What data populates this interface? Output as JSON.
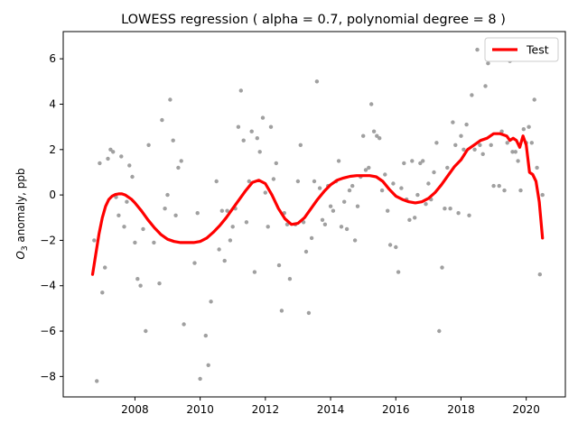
{
  "chart_data": {
    "type": "scatter",
    "title": "LOWESS regression ( alpha = 0.7, polynomial degree = 8 )",
    "xlabel": "",
    "ylabel_prefix": "O",
    "ylabel_sub": "3",
    "ylabel_suffix": " anomaly, ppb",
    "xlim": [
      2005.8,
      2021.2
    ],
    "ylim": [
      -8.9,
      7.2
    ],
    "xticks": [
      2008,
      2010,
      2012,
      2014,
      2016,
      2018,
      2020
    ],
    "yticks": [
      -8,
      -6,
      -4,
      -2,
      0,
      2,
      4,
      6
    ],
    "grid": false,
    "legend": {
      "position": "top-right",
      "entries": [
        "Test"
      ]
    },
    "colors": {
      "fit": "#ff0000",
      "points": "#a0a0a0"
    },
    "points": [
      {
        "x": 2006.75,
        "y": -2.0
      },
      {
        "x": 2006.83,
        "y": -8.2
      },
      {
        "x": 2006.92,
        "y": 1.4
      },
      {
        "x": 2007.0,
        "y": -4.3
      },
      {
        "x": 2007.08,
        "y": -3.2
      },
      {
        "x": 2007.17,
        "y": 1.6
      },
      {
        "x": 2007.25,
        "y": 2.0
      },
      {
        "x": 2007.33,
        "y": 1.9
      },
      {
        "x": 2007.42,
        "y": -0.1
      },
      {
        "x": 2007.5,
        "y": -0.9
      },
      {
        "x": 2007.58,
        "y": 1.7
      },
      {
        "x": 2007.67,
        "y": -1.4
      },
      {
        "x": 2007.75,
        "y": -0.3
      },
      {
        "x": 2007.83,
        "y": 1.3
      },
      {
        "x": 2007.92,
        "y": 0.8
      },
      {
        "x": 2008.0,
        "y": -2.1
      },
      {
        "x": 2008.08,
        "y": -3.7
      },
      {
        "x": 2008.17,
        "y": -4.0
      },
      {
        "x": 2008.25,
        "y": -1.5
      },
      {
        "x": 2008.33,
        "y": -6.0
      },
      {
        "x": 2008.42,
        "y": 2.2
      },
      {
        "x": 2008.58,
        "y": -2.1
      },
      {
        "x": 2008.75,
        "y": -3.9
      },
      {
        "x": 2008.83,
        "y": 3.3
      },
      {
        "x": 2008.92,
        "y": -0.6
      },
      {
        "x": 2009.0,
        "y": 0.0
      },
      {
        "x": 2009.08,
        "y": 4.2
      },
      {
        "x": 2009.17,
        "y": 2.4
      },
      {
        "x": 2009.25,
        "y": -0.9
      },
      {
        "x": 2009.33,
        "y": 1.2
      },
      {
        "x": 2009.42,
        "y": 1.5
      },
      {
        "x": 2009.5,
        "y": -5.7
      },
      {
        "x": 2009.83,
        "y": -3.0
      },
      {
        "x": 2009.92,
        "y": -0.8
      },
      {
        "x": 2010.0,
        "y": -8.1
      },
      {
        "x": 2010.17,
        "y": -6.2
      },
      {
        "x": 2010.25,
        "y": -7.5
      },
      {
        "x": 2010.33,
        "y": -4.7
      },
      {
        "x": 2010.5,
        "y": 0.6
      },
      {
        "x": 2010.58,
        "y": -2.4
      },
      {
        "x": 2010.67,
        "y": -0.7
      },
      {
        "x": 2010.75,
        "y": -2.9
      },
      {
        "x": 2010.83,
        "y": -0.7
      },
      {
        "x": 2010.92,
        "y": -2.0
      },
      {
        "x": 2011.0,
        "y": -1.4
      },
      {
        "x": 2011.08,
        "y": -0.6
      },
      {
        "x": 2011.17,
        "y": 3.0
      },
      {
        "x": 2011.25,
        "y": 4.6
      },
      {
        "x": 2011.33,
        "y": 2.4
      },
      {
        "x": 2011.42,
        "y": -1.2
      },
      {
        "x": 2011.5,
        "y": 0.6
      },
      {
        "x": 2011.58,
        "y": 2.8
      },
      {
        "x": 2011.67,
        "y": -3.4
      },
      {
        "x": 2011.75,
        "y": 2.5
      },
      {
        "x": 2011.83,
        "y": 1.9
      },
      {
        "x": 2011.92,
        "y": 3.4
      },
      {
        "x": 2012.0,
        "y": 0.1
      },
      {
        "x": 2012.08,
        "y": -1.4
      },
      {
        "x": 2012.17,
        "y": 3.0
      },
      {
        "x": 2012.25,
        "y": 0.7
      },
      {
        "x": 2012.33,
        "y": 1.4
      },
      {
        "x": 2012.42,
        "y": -3.1
      },
      {
        "x": 2012.5,
        "y": -5.1
      },
      {
        "x": 2012.58,
        "y": -0.8
      },
      {
        "x": 2012.67,
        "y": -1.3
      },
      {
        "x": 2012.75,
        "y": -3.7
      },
      {
        "x": 2012.92,
        "y": -1.3
      },
      {
        "x": 2013.0,
        "y": 0.6
      },
      {
        "x": 2013.08,
        "y": 2.2
      },
      {
        "x": 2013.17,
        "y": -1.2
      },
      {
        "x": 2013.25,
        "y": -2.5
      },
      {
        "x": 2013.33,
        "y": -5.2
      },
      {
        "x": 2013.42,
        "y": -1.9
      },
      {
        "x": 2013.5,
        "y": 0.6
      },
      {
        "x": 2013.58,
        "y": 5.0
      },
      {
        "x": 2013.67,
        "y": 0.3
      },
      {
        "x": 2013.75,
        "y": -1.1
      },
      {
        "x": 2013.83,
        "y": -1.3
      },
      {
        "x": 2013.92,
        "y": 0.4
      },
      {
        "x": 2014.0,
        "y": -0.5
      },
      {
        "x": 2014.08,
        "y": -0.7
      },
      {
        "x": 2014.17,
        "y": 0.6
      },
      {
        "x": 2014.25,
        "y": 1.5
      },
      {
        "x": 2014.33,
        "y": -1.4
      },
      {
        "x": 2014.42,
        "y": -0.3
      },
      {
        "x": 2014.5,
        "y": -1.5
      },
      {
        "x": 2014.58,
        "y": 0.2
      },
      {
        "x": 2014.67,
        "y": 0.4
      },
      {
        "x": 2014.75,
        "y": -2.0
      },
      {
        "x": 2014.83,
        "y": -0.5
      },
      {
        "x": 2014.92,
        "y": 0.8
      },
      {
        "x": 2015.0,
        "y": 2.6
      },
      {
        "x": 2015.08,
        "y": 1.1
      },
      {
        "x": 2015.17,
        "y": 1.2
      },
      {
        "x": 2015.25,
        "y": 4.0
      },
      {
        "x": 2015.33,
        "y": 2.8
      },
      {
        "x": 2015.42,
        "y": 2.6
      },
      {
        "x": 2015.5,
        "y": 2.5
      },
      {
        "x": 2015.58,
        "y": 0.2
      },
      {
        "x": 2015.67,
        "y": 0.9
      },
      {
        "x": 2015.75,
        "y": -0.7
      },
      {
        "x": 2015.83,
        "y": -2.2
      },
      {
        "x": 2015.92,
        "y": 0.5
      },
      {
        "x": 2016.0,
        "y": -2.3
      },
      {
        "x": 2016.08,
        "y": -3.4
      },
      {
        "x": 2016.17,
        "y": 0.3
      },
      {
        "x": 2016.25,
        "y": 1.4
      },
      {
        "x": 2016.33,
        "y": -0.2
      },
      {
        "x": 2016.42,
        "y": -1.1
      },
      {
        "x": 2016.5,
        "y": 1.5
      },
      {
        "x": 2016.58,
        "y": -1.0
      },
      {
        "x": 2016.67,
        "y": 0.0
      },
      {
        "x": 2016.75,
        "y": 1.4
      },
      {
        "x": 2016.83,
        "y": 1.5
      },
      {
        "x": 2016.92,
        "y": -0.4
      },
      {
        "x": 2017.0,
        "y": 0.5
      },
      {
        "x": 2017.08,
        "y": -0.2
      },
      {
        "x": 2017.17,
        "y": 1.0
      },
      {
        "x": 2017.25,
        "y": 2.3
      },
      {
        "x": 2017.33,
        "y": -6.0
      },
      {
        "x": 2017.42,
        "y": -3.2
      },
      {
        "x": 2017.5,
        "y": -0.6
      },
      {
        "x": 2017.58,
        "y": 1.2
      },
      {
        "x": 2017.67,
        "y": -0.6
      },
      {
        "x": 2017.75,
        "y": 3.2
      },
      {
        "x": 2017.83,
        "y": 2.2
      },
      {
        "x": 2017.92,
        "y": -0.8
      },
      {
        "x": 2018.0,
        "y": 2.6
      },
      {
        "x": 2018.08,
        "y": 2.0
      },
      {
        "x": 2018.17,
        "y": 3.1
      },
      {
        "x": 2018.25,
        "y": -0.9
      },
      {
        "x": 2018.33,
        "y": 4.4
      },
      {
        "x": 2018.42,
        "y": 2.0
      },
      {
        "x": 2018.5,
        "y": 6.4
      },
      {
        "x": 2018.58,
        "y": 2.2
      },
      {
        "x": 2018.67,
        "y": 1.8
      },
      {
        "x": 2018.75,
        "y": 4.8
      },
      {
        "x": 2018.83,
        "y": 5.8
      },
      {
        "x": 2018.92,
        "y": 2.2
      },
      {
        "x": 2019.0,
        "y": 0.4
      },
      {
        "x": 2019.08,
        "y": 6.0
      },
      {
        "x": 2019.17,
        "y": 0.4
      },
      {
        "x": 2019.25,
        "y": 2.8
      },
      {
        "x": 2019.33,
        "y": 0.2
      },
      {
        "x": 2019.42,
        "y": 2.3
      },
      {
        "x": 2019.5,
        "y": 5.9
      },
      {
        "x": 2019.58,
        "y": 1.9
      },
      {
        "x": 2019.67,
        "y": 1.9
      },
      {
        "x": 2019.75,
        "y": 1.5
      },
      {
        "x": 2019.83,
        "y": 0.2
      },
      {
        "x": 2019.92,
        "y": 2.9
      },
      {
        "x": 2020.0,
        "y": 2.3
      },
      {
        "x": 2020.08,
        "y": 3.0
      },
      {
        "x": 2020.17,
        "y": 2.3
      },
      {
        "x": 2020.25,
        "y": 4.2
      },
      {
        "x": 2020.33,
        "y": 1.2
      },
      {
        "x": 2020.42,
        "y": -3.5
      },
      {
        "x": 2020.5,
        "y": 0.0
      }
    ],
    "fit_series": {
      "name": "Test",
      "x": [
        2006.7,
        2006.8,
        2006.9,
        2007.0,
        2007.1,
        2007.2,
        2007.3,
        2007.4,
        2007.5,
        2007.6,
        2007.7,
        2007.8,
        2007.9,
        2008.0,
        2008.2,
        2008.4,
        2008.6,
        2008.8,
        2009.0,
        2009.2,
        2009.4,
        2009.6,
        2009.8,
        2010.0,
        2010.2,
        2010.4,
        2010.6,
        2010.8,
        2011.0,
        2011.2,
        2011.4,
        2011.6,
        2011.8,
        2012.0,
        2012.2,
        2012.4,
        2012.6,
        2012.8,
        2013.0,
        2013.2,
        2013.4,
        2013.6,
        2013.8,
        2014.0,
        2014.2,
        2014.4,
        2014.6,
        2014.8,
        2015.0,
        2015.2,
        2015.4,
        2015.6,
        2015.8,
        2016.0,
        2016.2,
        2016.4,
        2016.6,
        2016.8,
        2017.0,
        2017.2,
        2017.4,
        2017.6,
        2017.8,
        2018.0,
        2018.2,
        2018.4,
        2018.6,
        2018.8,
        2019.0,
        2019.2,
        2019.4,
        2019.5,
        2019.6,
        2019.7,
        2019.8,
        2019.9,
        2020.0,
        2020.1,
        2020.2,
        2020.3,
        2020.4,
        2020.5
      ],
      "y": [
        -3.5,
        -2.6,
        -1.7,
        -1.0,
        -0.5,
        -0.2,
        -0.05,
        0.02,
        0.05,
        0.05,
        0.0,
        -0.1,
        -0.2,
        -0.35,
        -0.7,
        -1.1,
        -1.45,
        -1.75,
        -1.95,
        -2.05,
        -2.1,
        -2.1,
        -2.1,
        -2.05,
        -1.9,
        -1.65,
        -1.35,
        -1.0,
        -0.6,
        -0.2,
        0.2,
        0.55,
        0.65,
        0.5,
        0.0,
        -0.6,
        -1.05,
        -1.3,
        -1.25,
        -1.0,
        -0.6,
        -0.2,
        0.15,
        0.45,
        0.65,
        0.75,
        0.82,
        0.85,
        0.85,
        0.85,
        0.8,
        0.6,
        0.25,
        -0.05,
        -0.2,
        -0.3,
        -0.35,
        -0.3,
        -0.15,
        0.1,
        0.45,
        0.85,
        1.25,
        1.55,
        2.0,
        2.2,
        2.4,
        2.5,
        2.7,
        2.7,
        2.6,
        2.4,
        2.5,
        2.4,
        2.1,
        2.6,
        2.2,
        1.0,
        0.9,
        0.6,
        -0.3,
        -1.9
      ]
    }
  }
}
